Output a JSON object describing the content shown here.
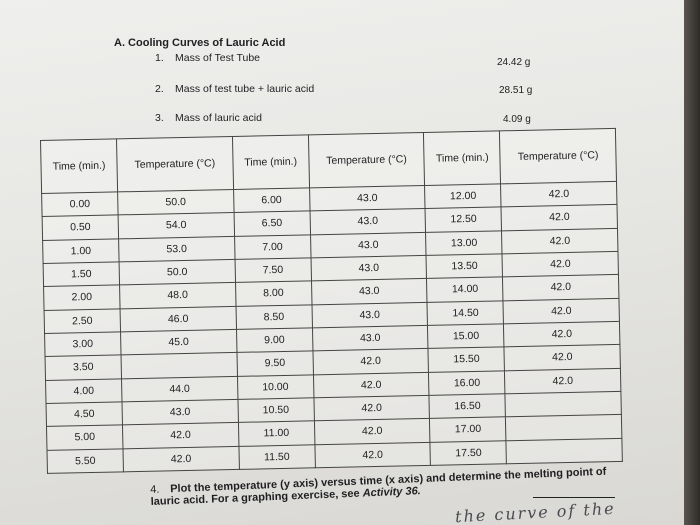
{
  "section": {
    "title": "A. Cooling Curves of Lauric Acid"
  },
  "masses": [
    {
      "num": "1.",
      "label": "Mass of Test Tube",
      "value": "24.42 g"
    },
    {
      "num": "2.",
      "label": "Mass of test tube + lauric acid",
      "value": "28.51 g"
    },
    {
      "num": "3.",
      "label": "Mass of lauric acid",
      "value": "4.09 g"
    }
  ],
  "table": {
    "headers": [
      "Time (min.)",
      "Temperature (°C)",
      "Time (min.)",
      "Temperature (°C)",
      "Time (min.)",
      "Temperature (°C)"
    ],
    "rows": [
      [
        "0.00",
        "50.0",
        "6.00",
        "43.0",
        "12.00",
        "42.0"
      ],
      [
        "0.50",
        "54.0",
        "6.50",
        "43.0",
        "12.50",
        "42.0"
      ],
      [
        "1.00",
        "53.0",
        "7.00",
        "43.0",
        "13.00",
        "42.0"
      ],
      [
        "1.50",
        "50.0",
        "7.50",
        "43.0",
        "13.50",
        "42.0"
      ],
      [
        "2.00",
        "48.0",
        "8.00",
        "43.0",
        "14.00",
        "42.0"
      ],
      [
        "2.50",
        "46.0",
        "8.50",
        "43.0",
        "14.50",
        "42.0"
      ],
      [
        "3.00",
        "45.0",
        "9.00",
        "43.0",
        "15.00",
        "42.0"
      ],
      [
        "3.50",
        "",
        "9.50",
        "42.0",
        "15.50",
        "42.0"
      ],
      [
        "4.00",
        "44.0",
        "10.00",
        "42.0",
        "16.00",
        "42.0"
      ],
      [
        "4.50",
        "43.0",
        "10.50",
        "42.0",
        "16.50",
        ""
      ],
      [
        "5.00",
        "42.0",
        "11.00",
        "42.0",
        "17.00",
        ""
      ],
      [
        "5.50",
        "42.0",
        "11.50",
        "42.0",
        "17.50",
        ""
      ]
    ]
  },
  "question": {
    "num": "4.",
    "text": "Plot the temperature (y axis) versus time (x axis) and determine the melting point of lauric acid. For a graphing exercise, see",
    "activity": "Activity 36."
  },
  "handwriting": "the curve of the"
}
